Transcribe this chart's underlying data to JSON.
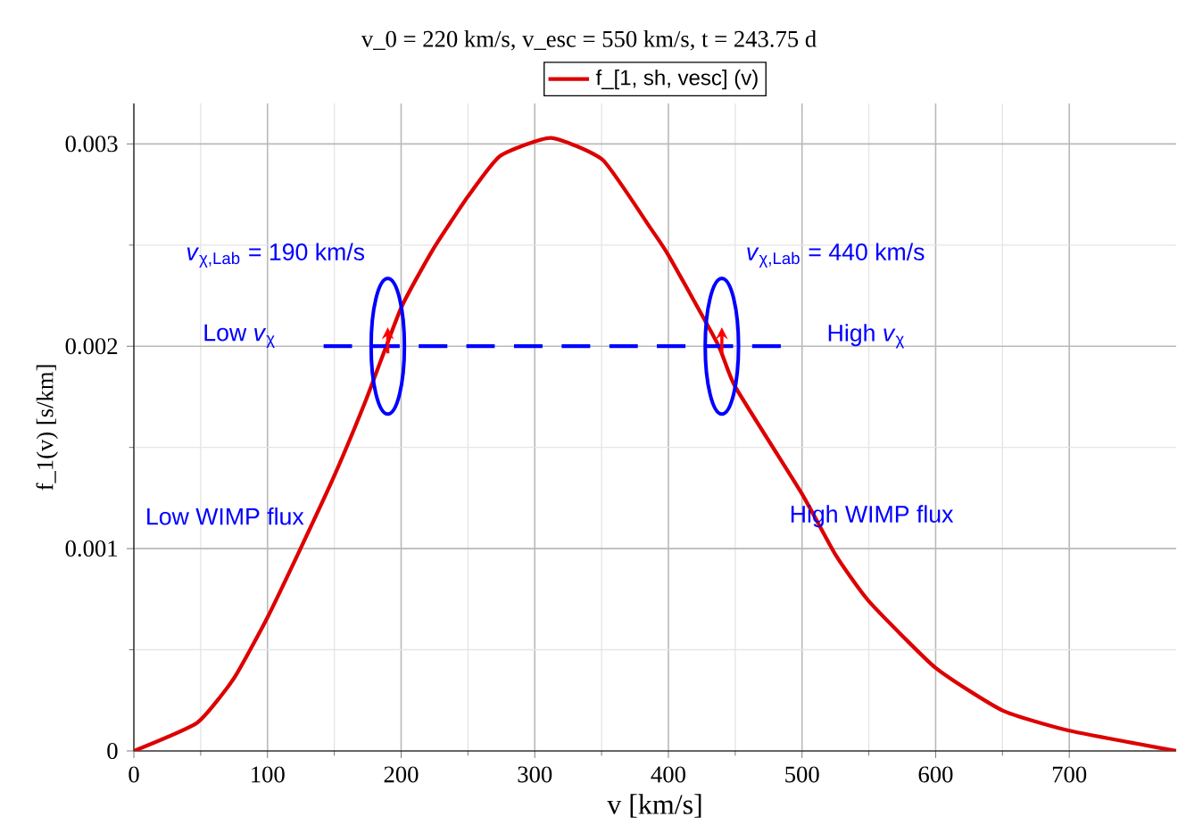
{
  "chart_data": {
    "type": "line",
    "title": "v_0 = 220 km/s, v_esc = 550 km/s, t = 243.75 d",
    "xlabel": "v [km/s]",
    "ylabel": "f_1(v) [s/km]",
    "xlim": [
      0,
      780
    ],
    "ylim": [
      0,
      0.0032
    ],
    "xticks": [
      0,
      100,
      200,
      300,
      400,
      500,
      600,
      700
    ],
    "yticks": [
      0,
      0.001,
      0.002,
      0.003
    ],
    "grid": true,
    "legend": "top",
    "series": [
      {
        "name": "f_[1, sh, vesc] (v)",
        "color": "#dd0000",
        "line_style": "solid",
        "x": [
          0,
          47.5,
          75,
          100,
          124,
          150,
          174,
          200,
          224,
          250,
          274,
          312,
          351,
          387,
          400,
          437,
          450,
          500,
          525,
          550,
          600,
          650,
          700,
          780
        ],
        "values": [
          0,
          0.00014,
          0.00036,
          0.00066,
          0.00099,
          0.00136,
          0.00174,
          0.00219,
          0.00248,
          0.00274,
          0.00294,
          0.00303,
          0.00292,
          0.00258,
          0.00245,
          0.00201,
          0.0018,
          0.00127,
          0.00097,
          0.00074,
          0.00041,
          0.0002,
          0.0001,
          0
        ]
      },
      {
        "type": "line",
        "color": "#0000ff",
        "line_style": "dashed",
        "x": [
          142,
          487
        ],
        "values": [
          0.002,
          0.002
        ]
      }
    ],
    "annotations": [
      "*v*$_{χ,Lab}$ = 190 km/s",
      "*v*$_{χ,Lab}$ = 440 km/s",
      "Low *v*$_{χ}$",
      "High *v*$_{χ}$",
      "Low WIMP flux",
      "High WIMP flux"
    ]
  }
}
